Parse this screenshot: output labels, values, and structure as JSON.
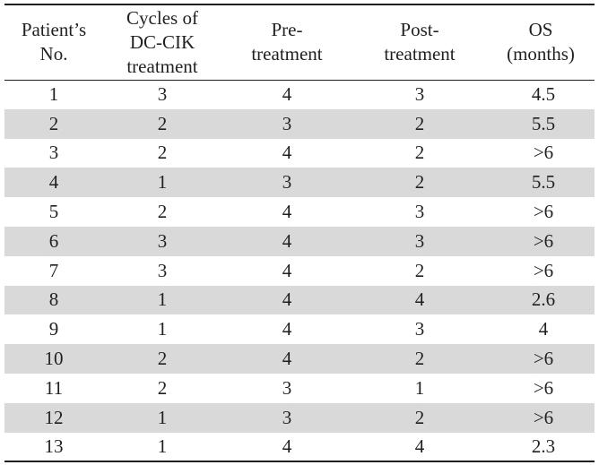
{
  "table": {
    "headers": [
      [
        "Patient’s",
        "No."
      ],
      [
        "Cycles of",
        "DC-CIK",
        "treatment"
      ],
      [
        "Pre-",
        "treatment"
      ],
      [
        "Post-",
        "treatment"
      ],
      [
        "OS",
        "(months)"
      ]
    ],
    "rows": [
      [
        "1",
        "3",
        "4",
        "3",
        "4.5"
      ],
      [
        "2",
        "2",
        "3",
        "2",
        "5.5"
      ],
      [
        "3",
        "2",
        "4",
        "2",
        ">6"
      ],
      [
        "4",
        "1",
        "3",
        "2",
        "5.5"
      ],
      [
        "5",
        "2",
        "4",
        "3",
        ">6"
      ],
      [
        "6",
        "3",
        "4",
        "3",
        ">6"
      ],
      [
        "7",
        "3",
        "4",
        "2",
        ">6"
      ],
      [
        "8",
        "1",
        "4",
        "4",
        "2.6"
      ],
      [
        "9",
        "1",
        "4",
        "3",
        "4"
      ],
      [
        "10",
        "2",
        "4",
        "2",
        ">6"
      ],
      [
        "11",
        "2",
        "3",
        "1",
        ">6"
      ],
      [
        "12",
        "1",
        "3",
        "2",
        ">6"
      ],
      [
        "13",
        "1",
        "4",
        "4",
        "2.3"
      ]
    ]
  }
}
